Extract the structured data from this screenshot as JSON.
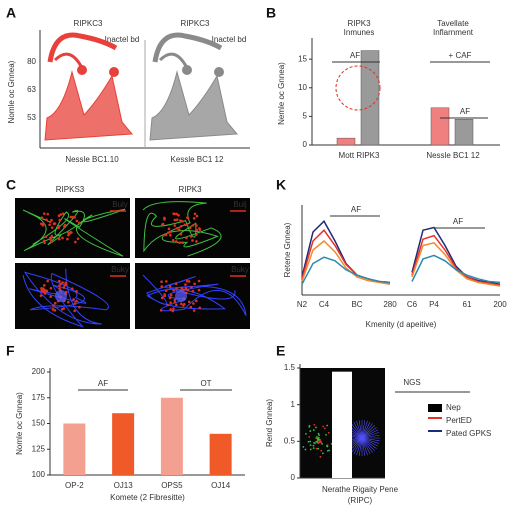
{
  "chart_data": [
    {
      "type": "illustration",
      "panel": "A",
      "titles": [
        "RIPKC3",
        "RIPKC3"
      ],
      "annotations": [
        "Inactel bd",
        "Inactel bd"
      ],
      "y_label": "Nomle oc Gnnea)",
      "y_tick_labels": [
        "80",
        "63",
        "53"
      ],
      "x_labels": [
        "Nessle BC1.10",
        "Kessle BC1 12"
      ],
      "colors": [
        "#e8403a",
        "#8a8a8a"
      ]
    },
    {
      "type": "bar",
      "panel": "B",
      "group_titles": [
        [
          "RIPK3",
          "Inmunes"
        ],
        [
          "Tavellate",
          "Inflarnment"
        ]
      ],
      "y_label": "Nemle oc Gnnea)",
      "categories": [
        "Mott RIPK3",
        "Nessle BC1 12"
      ],
      "series": [
        {
          "color": "#f08080",
          "values": [
            1.2,
            6.5
          ]
        },
        {
          "color": "#9a9a9a",
          "values": [
            16.5,
            4.5
          ]
        }
      ],
      "ylim": [
        0,
        18
      ],
      "yticks": [
        0,
        5,
        10,
        15
      ],
      "annotations": [
        "AF",
        "+ CAF",
        "AF"
      ]
    },
    {
      "type": "micrograph",
      "panel": "C",
      "titles": [
        "RIPKS3",
        "RIPK3"
      ],
      "image_labels": [
        "Buly",
        "Bulj",
        "Buky",
        "Buky"
      ]
    },
    {
      "type": "line",
      "panel": "K",
      "y_label": "Retene Gnnea)",
      "x_label": "Kmenity (d apeitive)",
      "categories": [
        "N2",
        null,
        "C4",
        null,
        null,
        "BC",
        null,
        null,
        "280",
        null,
        "C6",
        null,
        "P4",
        null,
        null,
        "61",
        null,
        null,
        "200"
      ],
      "series": [
        {
          "color": "#1f2a7a",
          "values": [
            20,
            70,
            82,
            60,
            35,
            22,
            18,
            15,
            14,
            null,
            25,
            72,
            75,
            55,
            32,
            20,
            16,
            14,
            12
          ]
        },
        {
          "color": "#e8302a",
          "values": [
            18,
            60,
            72,
            55,
            34,
            22,
            18,
            15,
            13,
            null,
            22,
            62,
            66,
            50,
            30,
            20,
            15,
            13,
            11
          ]
        },
        {
          "color": "#f08a30",
          "values": [
            15,
            50,
            60,
            48,
            30,
            20,
            16,
            14,
            12,
            null,
            20,
            55,
            58,
            45,
            28,
            18,
            14,
            12,
            10
          ]
        },
        {
          "color": "#2a8ab0",
          "values": [
            12,
            35,
            42,
            38,
            28,
            22,
            18,
            15,
            14,
            null,
            15,
            40,
            44,
            38,
            28,
            22,
            18,
            15,
            14
          ]
        }
      ],
      "ylim": [
        0,
        100
      ],
      "annotations": [
        "AF",
        "AF"
      ]
    },
    {
      "type": "bar",
      "panel": "F",
      "y_label": "Nomle oc Gnnea)",
      "x_label": "Komete (2 Fibresitte)",
      "categories": [
        "OP-2",
        "OJ13",
        "OPS5",
        "OJ14"
      ],
      "values": [
        150,
        160,
        175,
        140
      ],
      "colors": [
        "#f4a090",
        "#f05a28",
        "#f4a090",
        "#f05a28"
      ],
      "ylim": [
        100,
        200
      ],
      "yticks": [
        100,
        125,
        150,
        175,
        200
      ],
      "annotations": [
        "AF",
        "OT"
      ]
    },
    {
      "type": "bar",
      "panel": "E",
      "y_label": "Rend Gnnea)",
      "x_label": [
        "Nerathe Rigaity Pene",
        "(RIPC)"
      ],
      "values": [
        1.45
      ],
      "color": "#ffffff",
      "ylim": [
        0,
        1.5
      ],
      "yticks": [
        0,
        0.5,
        1,
        1.5
      ],
      "annotations": [
        "NGS"
      ],
      "legend": [
        {
          "name": "Nep",
          "color": "#000000"
        },
        {
          "name": "PertED",
          "color": "#e8302a"
        },
        {
          "name": "Pated GPKS",
          "color": "#1f2a7a"
        }
      ]
    }
  ]
}
